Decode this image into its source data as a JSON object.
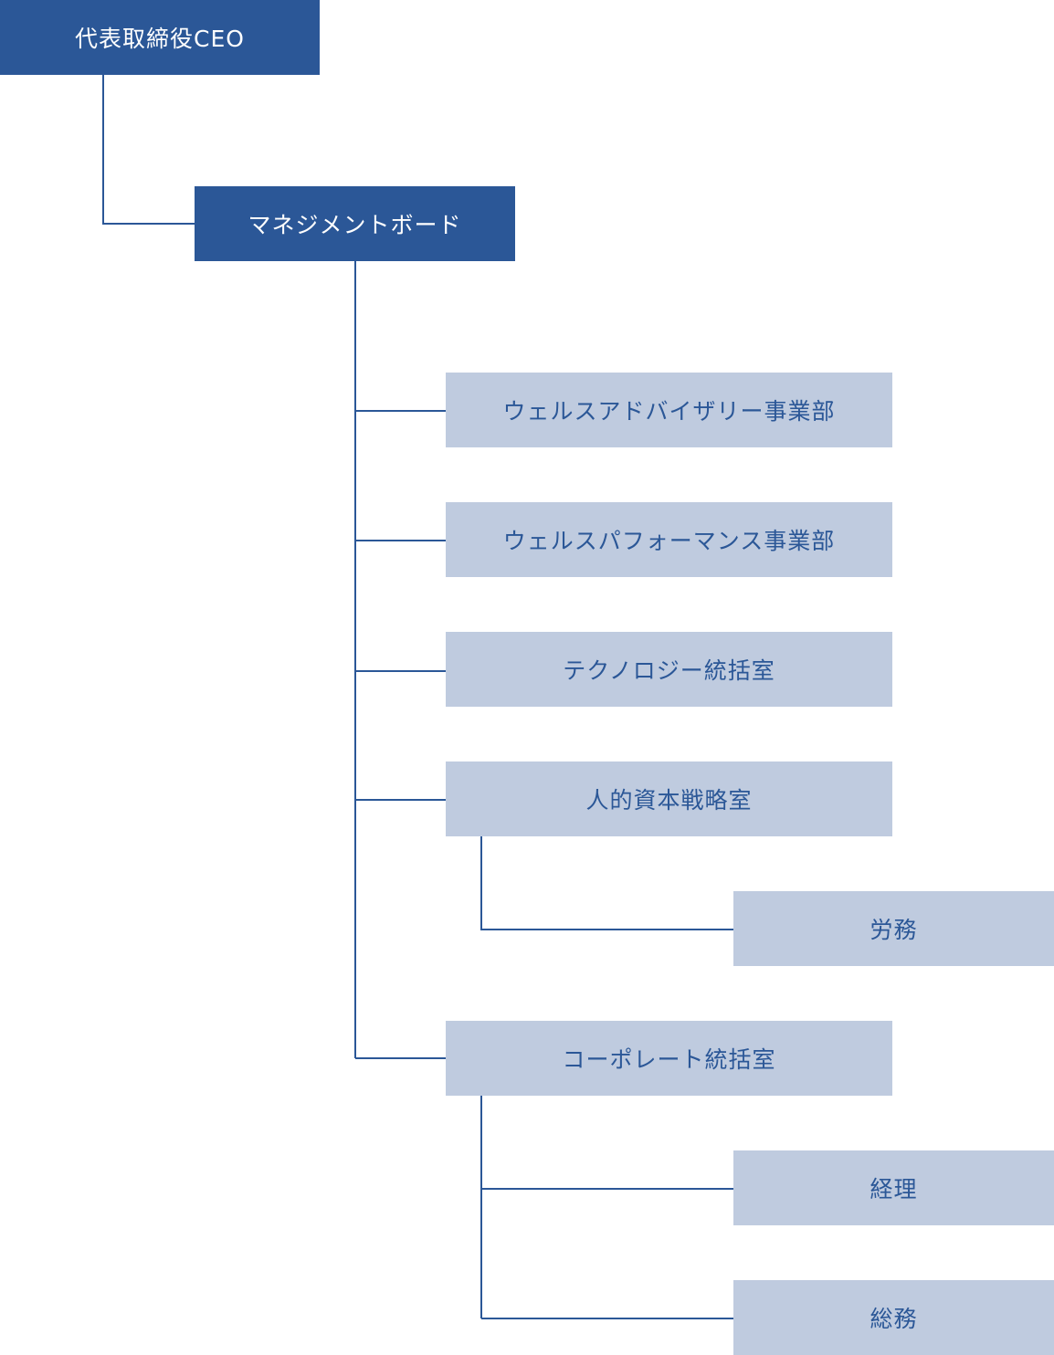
{
  "colors": {
    "primary": "#2b5797",
    "secondary": "#bfcbdf",
    "line": "#2b5797"
  },
  "nodes": {
    "ceo": "代表取締役CEO",
    "management_board": "マネジメントボード",
    "wealth_advisory": "ウェルスアドバイザリー事業部",
    "wealth_performance": "ウェルスパフォーマンス事業部",
    "technology": "テクノロジー統括室",
    "human_capital": "人的資本戦略室",
    "labor": "労務",
    "corporate": "コーポレート統括室",
    "accounting": "経理",
    "general_affairs": "総務"
  }
}
